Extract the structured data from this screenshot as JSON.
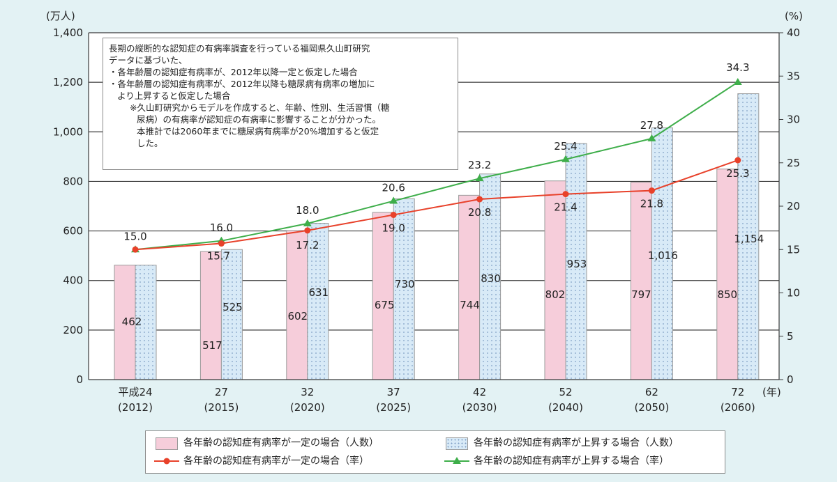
{
  "chart_data": {
    "type": "bar",
    "title": "",
    "categories": [
      {
        "era": "平成24",
        "year": "(2012)"
      },
      {
        "era": "27",
        "year": "(2015)"
      },
      {
        "era": "32",
        "year": "(2020)"
      },
      {
        "era": "37",
        "year": "(2025)"
      },
      {
        "era": "42",
        "year": "(2030)"
      },
      {
        "era": "52",
        "year": "(2040)"
      },
      {
        "era": "62",
        "year": "(2050)"
      },
      {
        "era": "72",
        "year": "(2060)"
      }
    ],
    "x_unit": "(年)",
    "y_left": {
      "unit": "(万人)",
      "lim": [
        0,
        1400
      ],
      "ticks": [
        "0",
        "200",
        "400",
        "600",
        "800",
        "1,000",
        "1,200",
        "1,400"
      ]
    },
    "y_right": {
      "unit": "(%)",
      "lim": [
        0,
        40
      ],
      "ticks": [
        "0",
        "5",
        "10",
        "15",
        "20",
        "25",
        "30",
        "35",
        "40"
      ]
    },
    "grid": "horizontal",
    "series": [
      {
        "name": "各年齢の認知症有病率が一定の場合（人数）",
        "kind": "bar",
        "axis": "left",
        "color": "#f6cdda",
        "values": [
          462,
          517,
          602,
          675,
          744,
          802,
          797,
          850
        ],
        "labels": [
          "462",
          "517",
          "602",
          "675",
          "744",
          "802",
          "797",
          "850"
        ]
      },
      {
        "name": "各年齢の認知症有病率が上昇する場合（人数）",
        "kind": "bar",
        "axis": "left",
        "color": "#d8eaf7",
        "values": [
          462,
          525,
          631,
          730,
          830,
          953,
          1016,
          1154
        ],
        "labels": [
          "",
          "525",
          "631",
          "730",
          "830",
          "953",
          "1,016",
          "1,154"
        ]
      },
      {
        "name": "各年齢の認知症有病率が一定の場合（率）",
        "kind": "line",
        "axis": "right",
        "color": "#e8412a",
        "values": [
          15.0,
          15.7,
          17.2,
          19.0,
          20.8,
          21.4,
          21.8,
          25.3
        ],
        "labels": [
          "",
          "15.7",
          "17.2",
          "19.0",
          "20.8",
          "21.4",
          "21.8",
          "25.3"
        ]
      },
      {
        "name": "各年齢の認知症有病率が上昇する場合（率）",
        "kind": "line",
        "axis": "right",
        "color": "#3eae4a",
        "values": [
          15.0,
          16.0,
          18.0,
          20.6,
          23.2,
          25.4,
          27.8,
          34.3
        ],
        "labels": [
          "15.0",
          "16.0",
          "18.0",
          "20.6",
          "23.2",
          "25.4",
          "27.8",
          "34.3"
        ]
      }
    ],
    "annotation": [
      "長期の縦断的な認知症の有病率調査を行っている福岡県久山町研究",
      "データに基づいた、",
      "・各年齢層の認知症有病率が、2012年以降一定と仮定した場合",
      "・各年齢層の認知症有病率が、2012年以降も糖尿病有病率の増加に",
      "より上昇すると仮定した場合",
      "※久山町研究からモデルを作成すると、年齢、性別、生活習慣（糖",
      "尿病）の有病率が認知症の有病率に影響することが分かった。",
      "本推計では2060年までに糖尿病有病率が20%増加すると仮定",
      "した。"
    ]
  }
}
